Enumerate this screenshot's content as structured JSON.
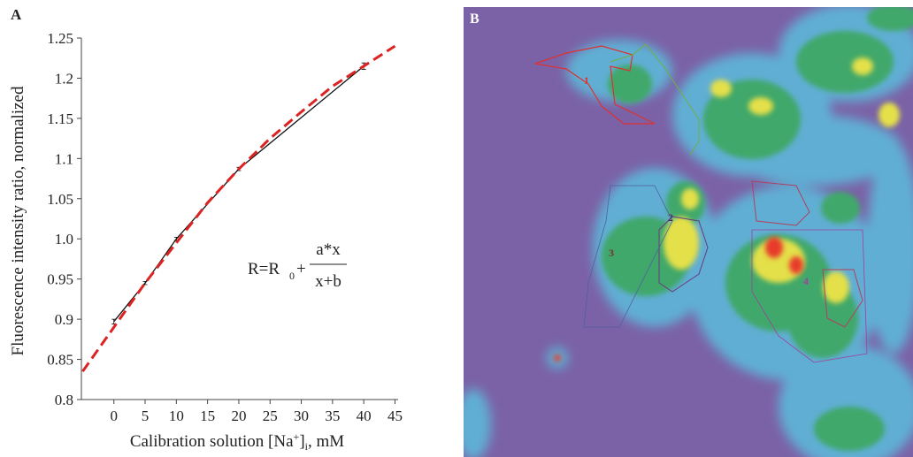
{
  "chart_data": {
    "type": "line",
    "panel_label": "A",
    "ylabel": "Fluorescence intensity ratio, normalized",
    "xlabel": {
      "text": "Calibration solution [Na",
      "sup": "+",
      "close": "]",
      "sub": "i",
      "unit": ", mM"
    },
    "xlim": [
      -5.2,
      45.5
    ],
    "ylim": [
      0.8,
      1.25
    ],
    "xticks": [
      0,
      5,
      10,
      15,
      20,
      25,
      30,
      35,
      40,
      45
    ],
    "yticks": [
      1.25,
      1.2,
      1.15,
      1.1,
      1.05,
      {
        "value": 1,
        "label": "1.0"
      },
      0.95,
      0.9,
      0.85,
      0.8
    ],
    "series": [
      {
        "color": "#111111",
        "x": [
          0,
          5,
          10,
          20,
          40
        ],
        "values": [
          0.897,
          0.945,
          1.0,
          1.087,
          1.215
        ],
        "errors": [
          0.003,
          0.002,
          0.002,
          0.002,
          0.004
        ]
      },
      {
        "color": "#dd2222",
        "dashed": true,
        "x": [
          -5,
          0,
          5,
          10,
          15,
          20,
          25,
          30,
          35,
          40,
          45
        ],
        "values": [
          0.835,
          0.89,
          0.945,
          0.995,
          1.045,
          1.087,
          1.125,
          1.158,
          1.19,
          1.215,
          1.24
        ]
      }
    ],
    "annotation": {
      "lhs": "R=R",
      "sub": "0",
      "plus": "+",
      "numerator": "a*x",
      "denominator": "x+b"
    }
  },
  "image": {
    "panel_label": "B",
    "rois": [
      "1",
      "2",
      "3",
      "4"
    ]
  }
}
